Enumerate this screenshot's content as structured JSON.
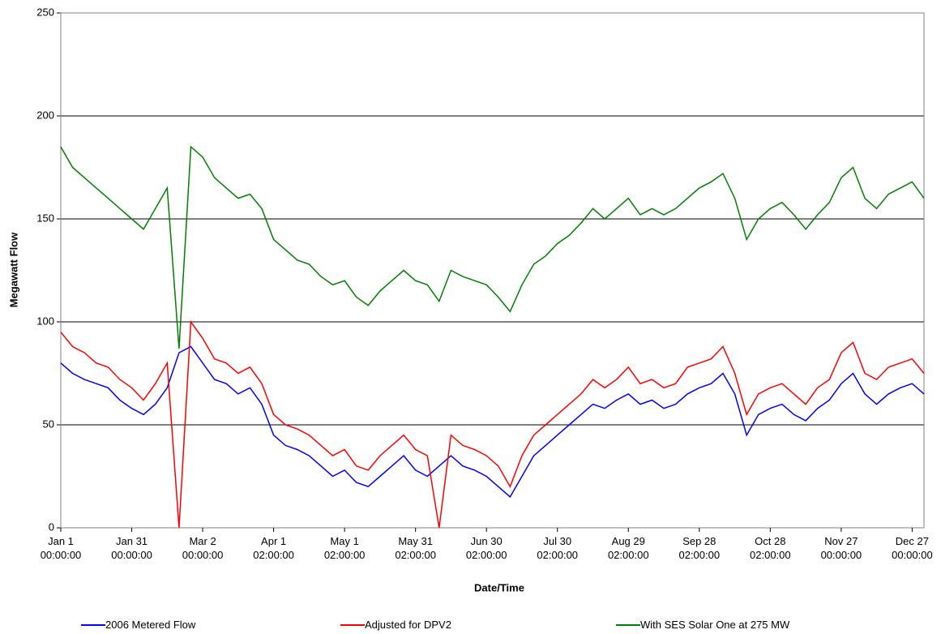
{
  "chart_data": {
    "type": "line",
    "x_label": "Date/Time",
    "y_label": "Megawatt Flow",
    "categories": [
      "Jan 1\n00:00:00",
      null,
      null,
      null,
      null,
      null,
      "Jan 31\n00:00:00",
      null,
      null,
      null,
      null,
      null,
      "Mar 2\n00:00:00",
      null,
      null,
      null,
      null,
      null,
      "Apr 1\n02:00:00",
      null,
      null,
      null,
      null,
      null,
      "May 1\n02:00:00",
      null,
      null,
      null,
      null,
      null,
      "May 31\n02:00:00",
      null,
      null,
      null,
      null,
      null,
      "Jun 30\n02:00:00",
      null,
      null,
      null,
      null,
      null,
      "Jul 30\n02:00:00",
      null,
      null,
      null,
      null,
      null,
      "Aug 29\n02:00:00",
      null,
      null,
      null,
      null,
      null,
      "Sep 28\n02:00:00",
      null,
      null,
      null,
      null,
      null,
      "Oct 28\n02:00:00",
      null,
      null,
      null,
      null,
      null,
      "Nov 27\n00:00:00",
      null,
      null,
      null,
      null,
      null,
      "Dec 27\n00:00:00",
      null
    ],
    "series": [
      {
        "name": "2006 Metered Flow",
        "color": "#0000ff",
        "values": [
          80,
          75,
          72,
          70,
          68,
          62,
          58,
          55,
          60,
          68,
          85,
          88,
          80,
          72,
          70,
          65,
          68,
          60,
          45,
          40,
          38,
          35,
          30,
          25,
          28,
          22,
          20,
          25,
          30,
          35,
          28,
          25,
          30,
          35,
          30,
          28,
          25,
          20,
          15,
          25,
          35,
          40,
          45,
          50,
          55,
          60,
          58,
          62,
          65,
          60,
          62,
          58,
          60,
          65,
          68,
          70,
          75,
          65,
          45,
          55,
          58,
          60,
          55,
          52,
          58,
          62,
          70,
          75,
          65,
          60,
          65,
          68,
          70,
          65
        ]
      },
      {
        "name": "Adjusted for DPV2",
        "color": "#ff0000",
        "values": [
          95,
          88,
          85,
          80,
          78,
          72,
          68,
          62,
          70,
          80,
          0,
          100,
          92,
          82,
          80,
          75,
          78,
          70,
          55,
          50,
          48,
          45,
          40,
          35,
          38,
          30,
          28,
          35,
          40,
          45,
          38,
          35,
          0,
          45,
          40,
          38,
          35,
          30,
          20,
          35,
          45,
          50,
          55,
          60,
          65,
          72,
          68,
          72,
          78,
          70,
          72,
          68,
          70,
          78,
          80,
          82,
          88,
          75,
          55,
          65,
          68,
          70,
          65,
          60,
          68,
          72,
          85,
          90,
          75,
          72,
          78,
          80,
          82,
          75
        ]
      },
      {
        "name": "With SES Solar One at 275 MW",
        "color": "#008000",
        "values": [
          185,
          175,
          170,
          165,
          160,
          155,
          150,
          145,
          155,
          165,
          87,
          185,
          180,
          170,
          165,
          160,
          162,
          155,
          140,
          135,
          130,
          128,
          122,
          118,
          120,
          112,
          108,
          115,
          120,
          125,
          120,
          118,
          110,
          125,
          122,
          120,
          118,
          112,
          105,
          118,
          128,
          132,
          138,
          142,
          148,
          155,
          150,
          155,
          160,
          152,
          155,
          152,
          155,
          160,
          165,
          168,
          172,
          160,
          140,
          150,
          155,
          158,
          152,
          145,
          152,
          158,
          170,
          175,
          160,
          155,
          162,
          165,
          168,
          160
        ]
      }
    ],
    "ylim": [
      0,
      250
    ],
    "yticks": [
      0,
      50,
      100,
      150,
      200,
      250
    ],
    "grid": true,
    "legend": "bottom"
  }
}
